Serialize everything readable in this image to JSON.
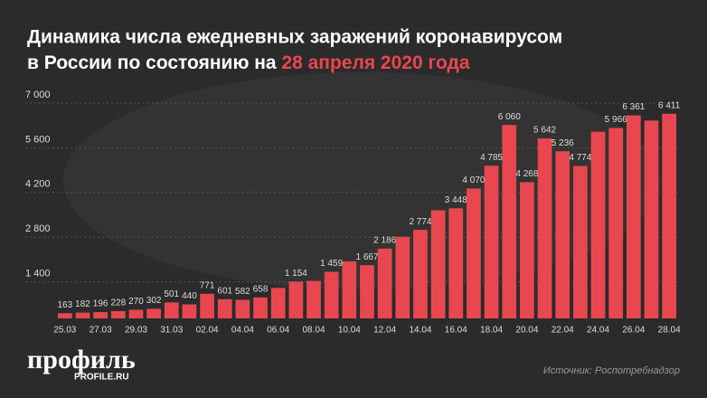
{
  "chart_data": {
    "type": "bar",
    "title_line1": "Динамика числа ежедневных заражений коронавирусом",
    "title_line2": "в России по состоянию на",
    "title_highlight": "28 апреля 2020 года",
    "categories": [
      "25.03",
      null,
      "27.03",
      null,
      "29.03",
      null,
      "31.03",
      null,
      "02.04",
      null,
      "04.04",
      null,
      "06.04",
      null,
      "08.04",
      null,
      "10.04",
      null,
      "12.04",
      null,
      "14.04",
      null,
      "16.04",
      null,
      "18.04",
      null,
      "20.04",
      null,
      "22.04",
      null,
      "24.04",
      null,
      "26.04",
      null,
      "28.04"
    ],
    "values": [
      163,
      182,
      196,
      228,
      270,
      302,
      501,
      440,
      771,
      601,
      582,
      658,
      954,
      1154,
      1175,
      1459,
      1786,
      1667,
      2186,
      2558,
      2774,
      3388,
      3448,
      4070,
      4785,
      6060,
      4268,
      5642,
      5236,
      4774,
      5849,
      5966,
      6361,
      6198,
      6411
    ],
    "value_labels": [
      "163",
      "182",
      "196",
      "228",
      "270",
      "302",
      "501",
      "440",
      "771",
      "601",
      "582",
      "658",
      null,
      "1 154",
      null,
      "1 459",
      null,
      "1 667",
      "2 186",
      null,
      "2 774",
      null,
      "3 448",
      "4 070",
      "4 785",
      "6 060",
      "4 268",
      "5 642",
      "5 236",
      "4 774",
      null,
      "5 966",
      "6 361",
      null,
      "6 411"
    ],
    "color": "#e8474f",
    "ylim": [
      0,
      7000
    ],
    "yticks": [
      {
        "value": 1400,
        "label": "1 400"
      },
      {
        "value": 2800,
        "label": "2 800"
      },
      {
        "value": 4200,
        "label": "4 200"
      },
      {
        "value": 5600,
        "label": "5 600"
      },
      {
        "value": 7000,
        "label": "7 000"
      }
    ],
    "grid": true,
    "logo": "профиль",
    "logo_site": "PROFILE.RU",
    "source": "Источник: Роспотребнадзор"
  }
}
